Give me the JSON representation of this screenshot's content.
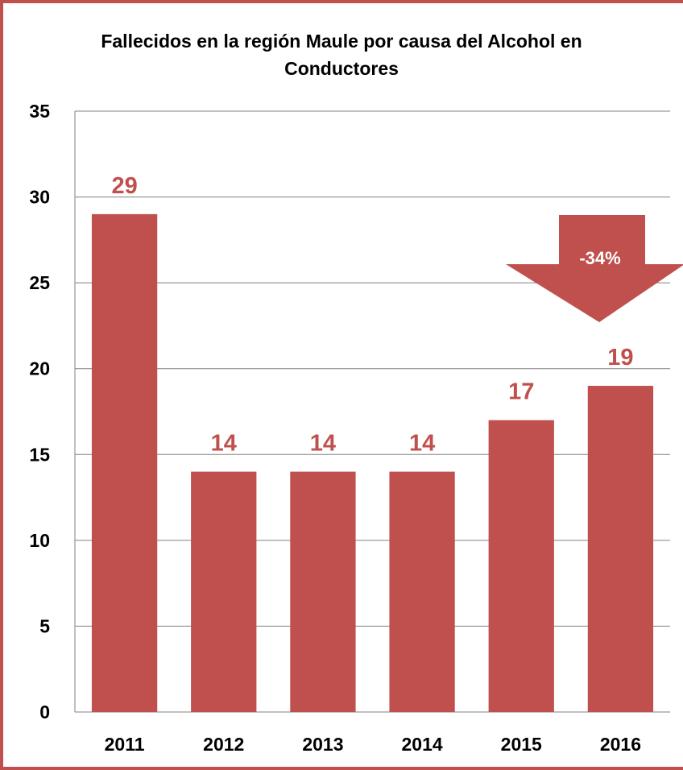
{
  "chart_data": {
    "type": "bar",
    "title_line1": "Fallecidos en la región Maule por causa del Alcohol en",
    "title_line2": "Conductores",
    "categories": [
      "2011",
      "2012",
      "2013",
      "2014",
      "2015",
      "2016"
    ],
    "values": [
      29,
      14,
      14,
      14,
      17,
      19
    ],
    "ylim": [
      0,
      35
    ],
    "yticks": [
      0,
      5,
      10,
      15,
      20,
      25,
      30,
      35
    ],
    "grid": true,
    "xlabel": "",
    "ylabel": "",
    "annotation": {
      "text": "-34%",
      "shape": "down-arrow",
      "near_category": "2016"
    },
    "colors": {
      "bar": "#C0504D",
      "label": "#C0504D",
      "arrow": "#C0504D",
      "arrow_text": "#ffffff",
      "grid": "#808080",
      "frame": "#C0504D"
    }
  }
}
